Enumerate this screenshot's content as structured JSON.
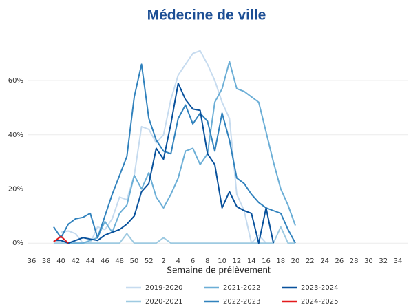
{
  "chart_data": {
    "type": "line",
    "title": "Médecine de ville",
    "x_label": "Semaine de prélèvement",
    "categories": [
      "36",
      null,
      "38",
      null,
      "40",
      null,
      "42",
      null,
      "44",
      null,
      "46",
      null,
      "48",
      null,
      "50",
      null,
      "52",
      null,
      "2",
      null,
      "4",
      null,
      "6",
      null,
      "8",
      null,
      "10",
      null,
      "12",
      null,
      "14",
      null,
      "16",
      null,
      "18",
      null,
      "20",
      null,
      "22",
      null,
      "24",
      null,
      "26",
      null,
      "28",
      null,
      "30",
      null,
      "32",
      null,
      "34",
      null
    ],
    "ylim": [
      -3,
      75
    ],
    "yticks": [
      {
        "value": 0,
        "label": "0%"
      },
      {
        "value": 20,
        "label": "20%"
      },
      {
        "value": 40,
        "label": "40%"
      },
      {
        "value": 60,
        "label": "60%"
      }
    ],
    "grid": true,
    "series": [
      {
        "name": "2019-2020",
        "color": "#c6dbef",
        "values": [
          null,
          null,
          null,
          null,
          4,
          4.5,
          3.5,
          0,
          0,
          6,
          5,
          9,
          17,
          16,
          25,
          43,
          42,
          37,
          40,
          53,
          62,
          66,
          70,
          71,
          66,
          60,
          52,
          46,
          18,
          12,
          0,
          3,
          0,
          null,
          null,
          null,
          null,
          null,
          null,
          null,
          null,
          null,
          null,
          null,
          null,
          null,
          null,
          null,
          null,
          null,
          null,
          null
        ]
      },
      {
        "name": "2020-2021",
        "color": "#9ecae1",
        "values": [
          null,
          null,
          null,
          0,
          0,
          0,
          0,
          0,
          0,
          0,
          0,
          0,
          0,
          3.5,
          0,
          0,
          0,
          0,
          2,
          0,
          0,
          0,
          0,
          0,
          0,
          0,
          0,
          0,
          0,
          0,
          0,
          0,
          0,
          0,
          6,
          0,
          0,
          null,
          null,
          null,
          null,
          null,
          null,
          null,
          null,
          null,
          null,
          null,
          null,
          null,
          null,
          null
        ]
      },
      {
        "name": "2021-2022",
        "color": "#6baed6",
        "values": [
          null,
          null,
          null,
          1,
          1,
          0,
          0,
          0,
          1,
          2,
          8,
          4,
          11,
          14,
          25,
          20,
          26,
          17,
          13,
          18,
          24,
          34,
          35,
          29,
          33,
          52,
          57,
          67,
          57,
          56,
          54,
          52,
          41,
          30,
          20,
          14,
          6.5,
          null,
          null,
          null,
          null,
          null,
          null,
          null,
          null,
          null,
          null,
          null,
          null,
          null,
          null,
          null
        ]
      },
      {
        "name": "2022-2023",
        "color": "#3182bd",
        "values": [
          null,
          null,
          null,
          6,
          2,
          7,
          9,
          9.5,
          11,
          2,
          10,
          18,
          25,
          32,
          54,
          66,
          46,
          38,
          34,
          33,
          46,
          51,
          44,
          48,
          45,
          34,
          48,
          38,
          24,
          22,
          18,
          15,
          13,
          12,
          11,
          5,
          0,
          null,
          null,
          null,
          null,
          null,
          null,
          null,
          null,
          null,
          null,
          null,
          null,
          null,
          null,
          null
        ]
      },
      {
        "name": "2023-2024",
        "color": "#08519c",
        "values": [
          null,
          null,
          null,
          1,
          1,
          0,
          1,
          2,
          1.5,
          1,
          3,
          4,
          5,
          7,
          10,
          19,
          22,
          35,
          31,
          44,
          59,
          53,
          49.5,
          49,
          33,
          29,
          13,
          19,
          13.5,
          12,
          11,
          0,
          13,
          0,
          null,
          null,
          null,
          null,
          null,
          null,
          null,
          null,
          null,
          null,
          null,
          null,
          null,
          null,
          null,
          null,
          null,
          null
        ]
      },
      {
        "name": "2024-2025",
        "color": "#e31a1c",
        "values": [
          null,
          null,
          null,
          0.5,
          2.5,
          0,
          null,
          null,
          null,
          null,
          null,
          null,
          null,
          null,
          null,
          null,
          null,
          null,
          null,
          null,
          null,
          null,
          null,
          null,
          null,
          null,
          null,
          null,
          null,
          null,
          null,
          null,
          null,
          null,
          null,
          null,
          null,
          null,
          null,
          null,
          null,
          null,
          null,
          null,
          null,
          null,
          null,
          null,
          null,
          null,
          null,
          null
        ]
      }
    ]
  }
}
